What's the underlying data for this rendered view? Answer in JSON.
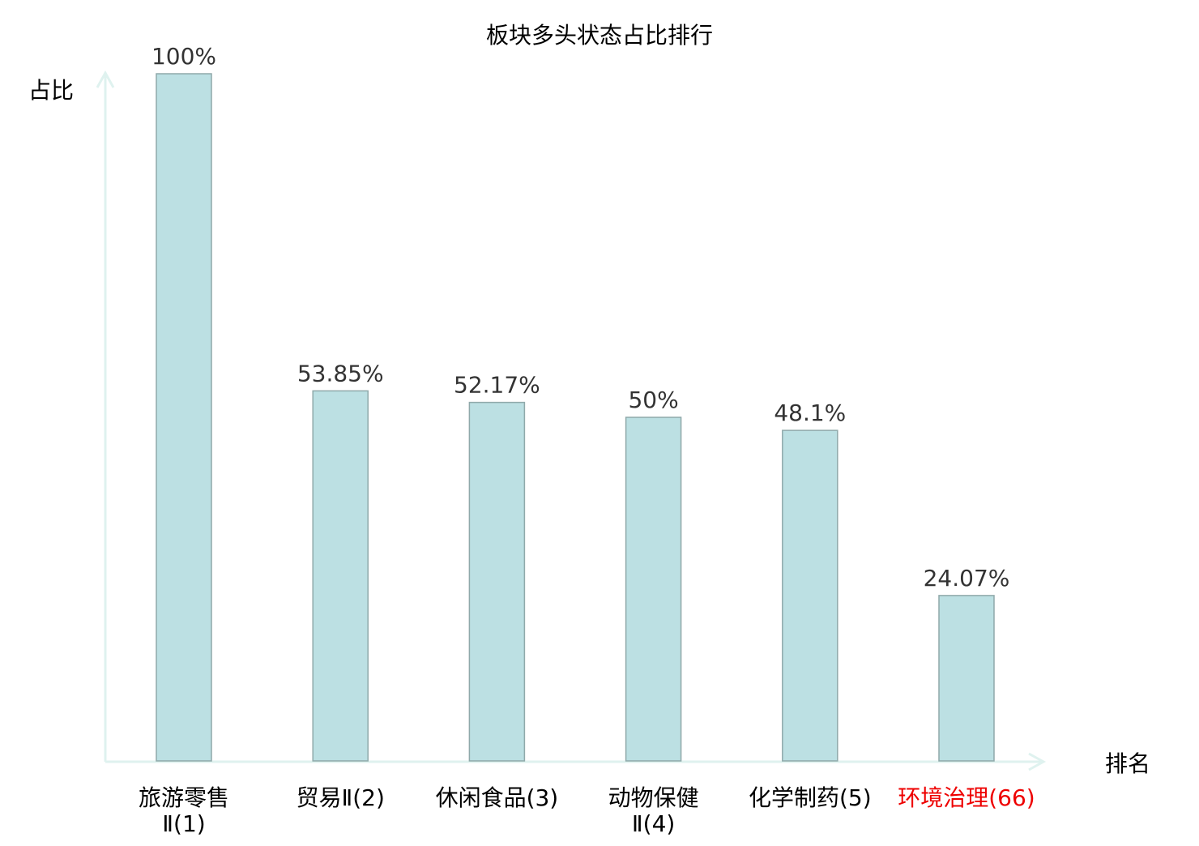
{
  "chart_data": {
    "type": "bar",
    "title": "板块多头状态占比排行",
    "xlabel": "排名",
    "ylabel": "占比",
    "ylim": [
      0,
      100
    ],
    "grid": false,
    "categories": [
      {
        "lines": [
          "旅游零售",
          "Ⅱ(1)"
        ],
        "highlight": false
      },
      {
        "lines": [
          "贸易Ⅱ(2)"
        ],
        "highlight": false
      },
      {
        "lines": [
          "休闲食品(3)"
        ],
        "highlight": false
      },
      {
        "lines": [
          "动物保健",
          "Ⅱ(4)"
        ],
        "highlight": false
      },
      {
        "lines": [
          "化学制药(5)"
        ],
        "highlight": false
      },
      {
        "lines": [
          "环境治理(66)"
        ],
        "highlight": true
      }
    ],
    "values": [
      100,
      53.85,
      52.17,
      50,
      48.1,
      24.07
    ],
    "data_labels": [
      "100%",
      "53.85%",
      "52.17%",
      "50%",
      "48.1%",
      "24.07%"
    ],
    "colors": {
      "bar_fill": "#bce0e3",
      "bar_stroke": "#8fa9aa",
      "axis": "#dff2ef",
      "highlight": "#ee0000",
      "text": "#000000",
      "label": "#333333"
    }
  }
}
